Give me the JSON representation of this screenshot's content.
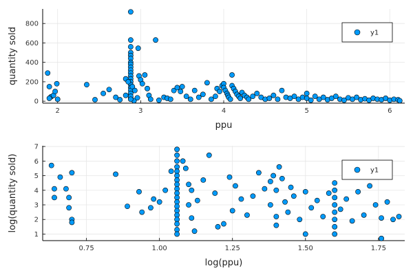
{
  "colors": {
    "series": "#009AF9",
    "marker_edge": "#000000",
    "grid": "#E6E6E6",
    "axis": "#000000",
    "background": "#FFFFFF"
  },
  "chart_data": [
    {
      "type": "scatter",
      "title": "",
      "xlabel": "ppu",
      "ylabel": "quantity sold",
      "xlim": [
        1.82,
        6.18
      ],
      "ylim": [
        -20,
        950
      ],
      "xticks": [
        2,
        3,
        4,
        5,
        6
      ],
      "yticks": [
        0,
        200,
        400,
        600,
        800
      ],
      "grid": true,
      "legend": {
        "position": "top-right",
        "entries": [
          "y1"
        ]
      },
      "series": [
        {
          "name": "y1",
          "points": [
            [
              1.88,
              290
            ],
            [
              1.9,
              150
            ],
            [
              1.92,
              45
            ],
            [
              1.95,
              60
            ],
            [
              1.97,
              100
            ],
            [
              1.99,
              180
            ],
            [
              1.9,
              30
            ],
            [
              2.0,
              20
            ],
            [
              2.35,
              170
            ],
            [
              2.45,
              15
            ],
            [
              2.55,
              80
            ],
            [
              2.62,
              120
            ],
            [
              2.7,
              40
            ],
            [
              2.75,
              15
            ],
            [
              2.82,
              60
            ],
            [
              2.88,
              30
            ],
            [
              2.92,
              5
            ],
            [
              2.96,
              35
            ],
            [
              2.88,
              920
            ],
            [
              2.88,
              630
            ],
            [
              2.88,
              560
            ],
            [
              2.88,
              500
            ],
            [
              2.88,
              470
            ],
            [
              2.88,
              440
            ],
            [
              2.88,
              400
            ],
            [
              2.88,
              380
            ],
            [
              2.88,
              350
            ],
            [
              2.88,
              320
            ],
            [
              2.88,
              290
            ],
            [
              2.88,
              260
            ],
            [
              2.88,
              230
            ],
            [
              2.88,
              200
            ],
            [
              2.88,
              170
            ],
            [
              2.88,
              140
            ],
            [
              2.88,
              110
            ],
            [
              2.88,
              80
            ],
            [
              2.88,
              50
            ],
            [
              2.88,
              20
            ],
            [
              2.82,
              230
            ],
            [
              2.85,
              200
            ],
            [
              2.9,
              150
            ],
            [
              2.93,
              110
            ],
            [
              2.97,
              545
            ],
            [
              2.98,
              260
            ],
            [
              3.0,
              220
            ],
            [
              3.02,
              180
            ],
            [
              3.05,
              270
            ],
            [
              3.08,
              130
            ],
            [
              3.1,
              60
            ],
            [
              3.12,
              20
            ],
            [
              3.18,
              630
            ],
            [
              3.22,
              10
            ],
            [
              3.28,
              40
            ],
            [
              3.32,
              30
            ],
            [
              3.36,
              20
            ],
            [
              3.4,
              110
            ],
            [
              3.44,
              140
            ],
            [
              3.48,
              100
            ],
            [
              3.5,
              150
            ],
            [
              3.55,
              50
            ],
            [
              3.6,
              20
            ],
            [
              3.65,
              110
            ],
            [
              3.7,
              40
            ],
            [
              3.75,
              70
            ],
            [
              3.8,
              190
            ],
            [
              3.85,
              20
            ],
            [
              3.9,
              50
            ],
            [
              3.92,
              130
            ],
            [
              3.95,
              100
            ],
            [
              3.98,
              160
            ],
            [
              4.0,
              180
            ],
            [
              4.0,
              140
            ],
            [
              4.02,
              110
            ],
            [
              4.04,
              80
            ],
            [
              4.05,
              60
            ],
            [
              4.06,
              40
            ],
            [
              4.08,
              20
            ],
            [
              4.1,
              270
            ],
            [
              4.1,
              160
            ],
            [
              4.12,
              130
            ],
            [
              4.14,
              100
            ],
            [
              4.16,
              70
            ],
            [
              4.18,
              50
            ],
            [
              4.2,
              30
            ],
            [
              4.22,
              90
            ],
            [
              4.25,
              60
            ],
            [
              4.28,
              40
            ],
            [
              4.3,
              20
            ],
            [
              4.35,
              50
            ],
            [
              4.4,
              80
            ],
            [
              4.45,
              40
            ],
            [
              4.5,
              20
            ],
            [
              4.55,
              30
            ],
            [
              4.6,
              60
            ],
            [
              4.65,
              20
            ],
            [
              4.7,
              110
            ],
            [
              4.75,
              40
            ],
            [
              4.8,
              30
            ],
            [
              4.85,
              50
            ],
            [
              4.9,
              20
            ],
            [
              4.95,
              40
            ],
            [
              5.0,
              80
            ],
            [
              5.0,
              30
            ],
            [
              5.05,
              10
            ],
            [
              5.1,
              50
            ],
            [
              5.15,
              20
            ],
            [
              5.2,
              40
            ],
            [
              5.25,
              15
            ],
            [
              5.3,
              30
            ],
            [
              5.35,
              50
            ],
            [
              5.4,
              20
            ],
            [
              5.45,
              10
            ],
            [
              5.5,
              35
            ],
            [
              5.55,
              20
            ],
            [
              5.6,
              40
            ],
            [
              5.65,
              15
            ],
            [
              5.7,
              25
            ],
            [
              5.75,
              10
            ],
            [
              5.8,
              30
            ],
            [
              5.85,
              20
            ],
            [
              5.9,
              15
            ],
            [
              5.95,
              30
            ],
            [
              6.0,
              10
            ],
            [
              6.05,
              20
            ],
            [
              6.1,
              15
            ],
            [
              6.12,
              5
            ]
          ]
        }
      ]
    },
    {
      "type": "scatter",
      "title": "",
      "xlabel": "log(ppu)",
      "ylabel": "log(quantity sold)",
      "xlim": [
        0.6,
        1.84
      ],
      "ylim": [
        0.55,
        7.05
      ],
      "xticks": [
        0.75,
        1.0,
        1.25,
        1.5,
        1.75
      ],
      "xtick_labels": [
        "0.75",
        "1.00",
        "1.25",
        "1.50",
        "1.75"
      ],
      "yticks": [
        1,
        2,
        3,
        4,
        5,
        6,
        7
      ],
      "grid": true,
      "legend": {
        "position": "top-right",
        "entries": [
          "y1"
        ]
      },
      "series": [
        {
          "name": "y1",
          "points": [
            [
              0.63,
              5.7
            ],
            [
              0.64,
              3.5
            ],
            [
              0.64,
              4.1
            ],
            [
              0.66,
              4.9
            ],
            [
              0.68,
              4.1
            ],
            [
              0.69,
              3.5
            ],
            [
              0.69,
              2.8
            ],
            [
              0.7,
              5.2
            ],
            [
              0.7,
              2.0
            ],
            [
              0.7,
              1.8
            ],
            [
              0.85,
              5.1
            ],
            [
              0.89,
              2.9
            ],
            [
              0.93,
              3.9
            ],
            [
              0.94,
              2.5
            ],
            [
              0.97,
              2.8
            ],
            [
              0.98,
              3.4
            ],
            [
              1.0,
              3.2
            ],
            [
              1.02,
              4.0
            ],
            [
              1.04,
              5.3
            ],
            [
              1.06,
              6.8
            ],
            [
              1.06,
              6.4
            ],
            [
              1.06,
              6.0
            ],
            [
              1.06,
              5.6
            ],
            [
              1.06,
              5.3
            ],
            [
              1.06,
              5.0
            ],
            [
              1.06,
              4.7
            ],
            [
              1.06,
              4.4
            ],
            [
              1.06,
              4.1
            ],
            [
              1.06,
              3.8
            ],
            [
              1.06,
              3.5
            ],
            [
              1.06,
              3.2
            ],
            [
              1.06,
              2.9
            ],
            [
              1.06,
              2.6
            ],
            [
              1.06,
              2.3
            ],
            [
              1.06,
              2.0
            ],
            [
              1.06,
              1.7
            ],
            [
              1.06,
              1.3
            ],
            [
              1.06,
              1.0
            ],
            [
              1.08,
              6.0
            ],
            [
              1.09,
              5.5
            ],
            [
              1.1,
              4.4
            ],
            [
              1.11,
              4.0
            ],
            [
              1.1,
              3.0
            ],
            [
              1.11,
              2.1
            ],
            [
              1.12,
              1.2
            ],
            [
              1.13,
              3.3
            ],
            [
              1.15,
              4.7
            ],
            [
              1.17,
              6.4
            ],
            [
              1.19,
              3.8
            ],
            [
              1.2,
              1.5
            ],
            [
              1.22,
              1.7
            ],
            [
              1.24,
              4.9
            ],
            [
              1.25,
              2.6
            ],
            [
              1.26,
              4.3
            ],
            [
              1.28,
              3.4
            ],
            [
              1.3,
              2.3
            ],
            [
              1.32,
              3.6
            ],
            [
              1.34,
              5.2
            ],
            [
              1.36,
              4.1
            ],
            [
              1.38,
              3.0
            ],
            [
              1.38,
              4.6
            ],
            [
              1.39,
              5.0
            ],
            [
              1.4,
              4.0
            ],
            [
              1.4,
              2.2
            ],
            [
              1.4,
              1.6
            ],
            [
              1.41,
              5.6
            ],
            [
              1.42,
              4.8
            ],
            [
              1.43,
              3.2
            ],
            [
              1.44,
              2.5
            ],
            [
              1.45,
              4.2
            ],
            [
              1.46,
              3.6
            ],
            [
              1.48,
              2.0
            ],
            [
              1.5,
              3.9
            ],
            [
              1.5,
              1.0
            ],
            [
              1.52,
              2.8
            ],
            [
              1.54,
              3.3
            ],
            [
              1.56,
              2.2
            ],
            [
              1.58,
              3.8
            ],
            [
              1.6,
              4.5
            ],
            [
              1.6,
              4.0
            ],
            [
              1.6,
              3.5
            ],
            [
              1.6,
              3.0
            ],
            [
              1.6,
              2.5
            ],
            [
              1.6,
              2.0
            ],
            [
              1.6,
              1.5
            ],
            [
              1.6,
              1.0
            ],
            [
              1.62,
              2.7
            ],
            [
              1.64,
              3.4
            ],
            [
              1.66,
              1.9
            ],
            [
              1.68,
              3.9
            ],
            [
              1.7,
              2.3
            ],
            [
              1.72,
              4.3
            ],
            [
              1.74,
              3.0
            ],
            [
              1.76,
              2.1
            ],
            [
              1.76,
              0.7
            ],
            [
              1.78,
              3.2
            ],
            [
              1.8,
              2.0
            ],
            [
              1.82,
              2.2
            ]
          ]
        }
      ]
    }
  ]
}
